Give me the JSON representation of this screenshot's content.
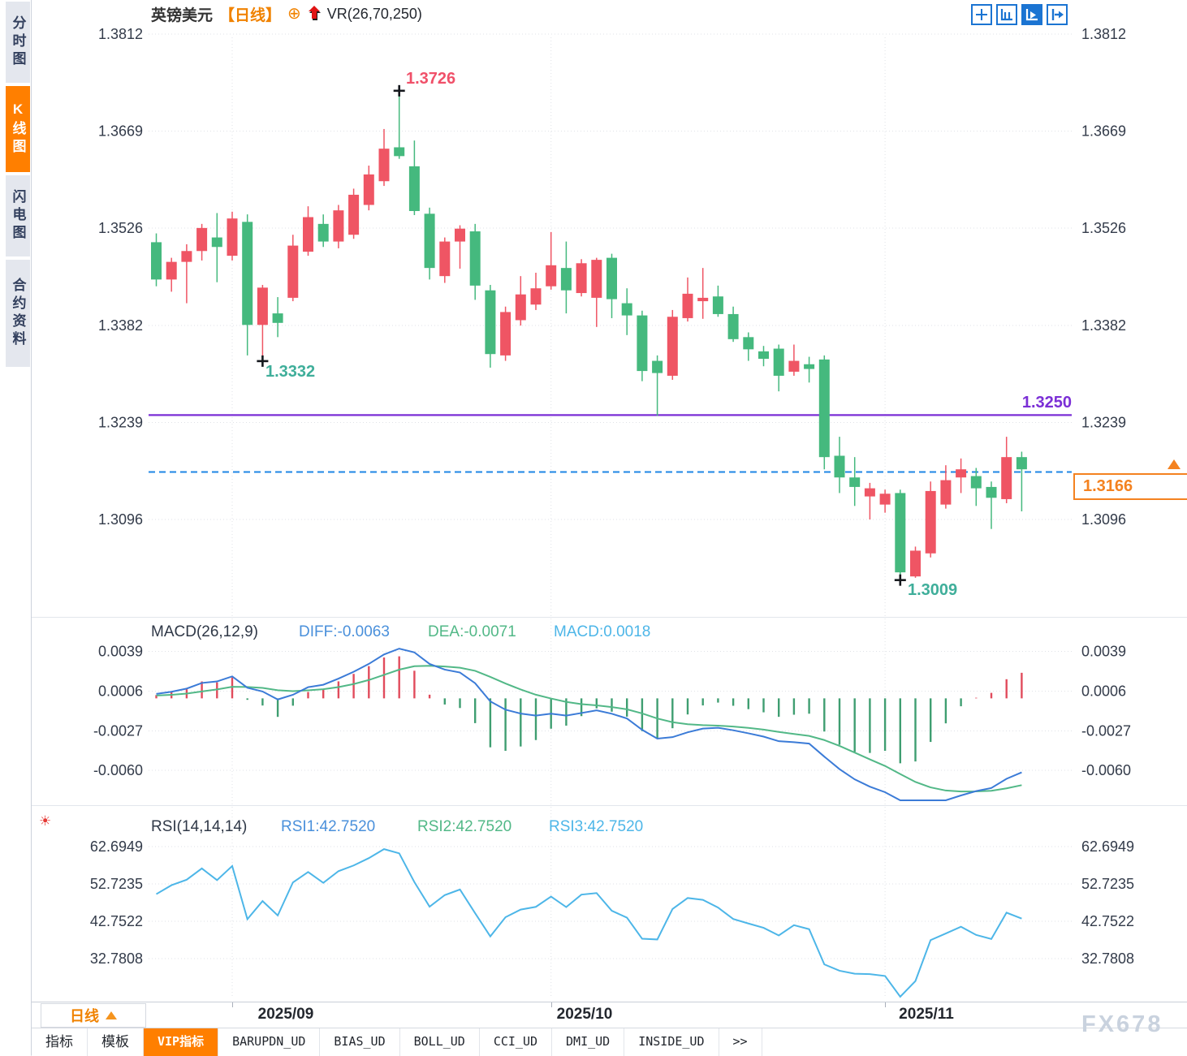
{
  "window": {
    "watermark": "FX678"
  },
  "colors": {
    "candle_up": "#EF5564",
    "candle_down": "#45B97E",
    "diff_line": "#3B7BD7",
    "dea_line": "#52B887",
    "hist_up": "#E14B5C",
    "hist_down": "#3F9E71",
    "rsi_line": "#4DB6E8",
    "legend_diff": "#4A90DB",
    "legend_dea": "#52B887",
    "legend_macd": "#4DB6E8",
    "legend_rsi1": "#4A90DB",
    "legend_rsi2": "#52B887",
    "legend_rsi3": "#4DB6E8",
    "accent_orange": "#F48220",
    "tab_active_bg": "#FF7F00",
    "support_purple": "#7B2FD6",
    "current_dashed_blue": "#1E86E5",
    "annotation_high": "#F05069",
    "annotation_low": "#3FAE9A",
    "toolbar_blue": "#1B74D2",
    "axis_text": "#333B4A",
    "watermark_gray": "#C9D2DE"
  },
  "icons": {
    "crosshair_add": "⊕",
    "rsi_bullet": "☀"
  },
  "sidebar": {
    "tabs": [
      {
        "label": "分时图",
        "active": false
      },
      {
        "label": "K线图",
        "active": true
      },
      {
        "label": "闪电图",
        "active": false
      },
      {
        "label": "合约资料",
        "active": false
      }
    ]
  },
  "header": {
    "symbol": "英镑美元",
    "period_tag": "【日线】",
    "indicator_label": "VR(26,70,250)"
  },
  "toolbar": {
    "icons": [
      "pan-crosshair-icon",
      "axis-scale-icon",
      "axis-autoplay-icon",
      "collapse-panel-icon"
    ]
  },
  "chart_data": {
    "type": "candlestick",
    "symbol": "英镑美元",
    "period": "日线",
    "overlay_indicator": "VR(26,70,250)",
    "price_panel": {
      "y_ticks": [
        "1.3812",
        "1.3669",
        "1.3526",
        "1.3382",
        "1.3239",
        "1.3096"
      ],
      "y_tick_values": [
        1.3812,
        1.3669,
        1.3526,
        1.3382,
        1.3239,
        1.3096
      ],
      "support_line": {
        "value": 1.325,
        "label": "1.3250"
      },
      "current_price": {
        "value": 1.3166,
        "label": "1.3166"
      },
      "annotations": [
        {
          "type": "swing-high",
          "label": "1.3726",
          "value": 1.3726,
          "candle_index": 16
        },
        {
          "type": "swing-low",
          "label": "1.3332",
          "value": 1.3332,
          "candle_index": 7
        },
        {
          "type": "swing-low",
          "label": "1.3009",
          "value": 1.3009,
          "candle_index": 49
        }
      ],
      "month_gridline_indices": [
        5,
        26,
        48
      ],
      "candles_ohlc": [
        [
          1.3505,
          1.3518,
          1.344,
          1.345
        ],
        [
          1.345,
          1.3482,
          1.3432,
          1.3476
        ],
        [
          1.3476,
          1.3502,
          1.3415,
          1.3492
        ],
        [
          1.3492,
          1.3532,
          1.3478,
          1.3526
        ],
        [
          1.3512,
          1.3548,
          1.3446,
          1.3498
        ],
        [
          1.3485,
          1.355,
          1.3478,
          1.354
        ],
        [
          1.3535,
          1.3546,
          1.3338,
          1.3383
        ],
        [
          1.3383,
          1.3442,
          1.3332,
          1.3438
        ],
        [
          1.34,
          1.3424,
          1.3365,
          1.3386
        ],
        [
          1.3423,
          1.3516,
          1.3418,
          1.35
        ],
        [
          1.3491,
          1.3558,
          1.3485,
          1.3542
        ],
        [
          1.3532,
          1.3546,
          1.3498,
          1.3506
        ],
        [
          1.3506,
          1.356,
          1.3496,
          1.3552
        ],
        [
          1.3516,
          1.3584,
          1.351,
          1.3575
        ],
        [
          1.356,
          1.3618,
          1.3552,
          1.3605
        ],
        [
          1.3595,
          1.3672,
          1.3588,
          1.3643
        ],
        [
          1.3645,
          1.3726,
          1.3628,
          1.3632
        ],
        [
          1.3617,
          1.3655,
          1.3545,
          1.3551
        ],
        [
          1.3547,
          1.3556,
          1.345,
          1.3467
        ],
        [
          1.3455,
          1.3512,
          1.3445,
          1.3506
        ],
        [
          1.3506,
          1.353,
          1.3466,
          1.3525
        ],
        [
          1.3521,
          1.3532,
          1.342,
          1.3441
        ],
        [
          1.3434,
          1.3442,
          1.332,
          1.334
        ],
        [
          1.3338,
          1.341,
          1.333,
          1.3402
        ],
        [
          1.339,
          1.3455,
          1.3382,
          1.3428
        ],
        [
          1.3413,
          1.346,
          1.3405,
          1.3437
        ],
        [
          1.344,
          1.352,
          1.3435,
          1.3471
        ],
        [
          1.3467,
          1.3506,
          1.34,
          1.3434
        ],
        [
          1.343,
          1.348,
          1.3425,
          1.3474
        ],
        [
          1.3423,
          1.3482,
          1.338,
          1.3479
        ],
        [
          1.3482,
          1.3488,
          1.3393,
          1.3421
        ],
        [
          1.3415,
          1.3437,
          1.3368,
          1.3397
        ],
        [
          1.3397,
          1.3404,
          1.33,
          1.3315
        ],
        [
          1.333,
          1.3338,
          1.3249,
          1.3312
        ],
        [
          1.3308,
          1.3405,
          1.3302,
          1.3395
        ],
        [
          1.3393,
          1.3453,
          1.3388,
          1.3429
        ],
        [
          1.3418,
          1.3467,
          1.3392,
          1.3423
        ],
        [
          1.3425,
          1.3441,
          1.3395,
          1.3399
        ],
        [
          1.3399,
          1.341,
          1.3358,
          1.3362
        ],
        [
          1.3365,
          1.3372,
          1.333,
          1.3347
        ],
        [
          1.3344,
          1.3352,
          1.3322,
          1.3333
        ],
        [
          1.3348,
          1.3354,
          1.3285,
          1.3308
        ],
        [
          1.3314,
          1.3354,
          1.3308,
          1.333
        ],
        [
          1.3325,
          1.3336,
          1.3298,
          1.3318
        ],
        [
          1.3332,
          1.3338,
          1.317,
          1.3188
        ],
        [
          1.319,
          1.3218,
          1.3135,
          1.3158
        ],
        [
          1.3158,
          1.3188,
          1.3116,
          1.3144
        ],
        [
          1.313,
          1.315,
          1.3096,
          1.3142
        ],
        [
          1.3118,
          1.314,
          1.3106,
          1.3134
        ],
        [
          1.3135,
          1.314,
          1.3009,
          1.3018
        ],
        [
          1.3012,
          1.3056,
          1.301,
          1.305
        ],
        [
          1.3046,
          1.3152,
          1.304,
          1.3138
        ],
        [
          1.3118,
          1.3176,
          1.3112,
          1.3154
        ],
        [
          1.3158,
          1.3186,
          1.3135,
          1.317
        ],
        [
          1.316,
          1.3172,
          1.3116,
          1.3142
        ],
        [
          1.3144,
          1.3152,
          1.3082,
          1.3128
        ],
        [
          1.3126,
          1.3218,
          1.312,
          1.3188
        ],
        [
          1.3188,
          1.3196,
          1.3108,
          1.317
        ]
      ]
    },
    "macd_panel": {
      "title": "MACD(26,12,9)",
      "params": [
        26,
        12,
        9
      ],
      "legend": [
        {
          "text": "DIFF:-0.0063",
          "series": "diff"
        },
        {
          "text": "DEA:-0.0071",
          "series": "dea"
        },
        {
          "text": "MACD:0.0018",
          "series": "macd_hist"
        }
      ],
      "y_ticks": [
        "0.0039",
        "0.0006",
        "-0.0027",
        "-0.0060"
      ],
      "y_tick_values": [
        0.0039,
        0.0006,
        -0.0027,
        -0.006
      ]
    },
    "rsi_panel": {
      "title": "RSI(14,14,14)",
      "params": [
        14,
        14,
        14
      ],
      "legend": [
        {
          "text": "RSI1:42.7520",
          "series": "rsi1"
        },
        {
          "text": "RSI2:42.7520",
          "series": "rsi2"
        },
        {
          "text": "RSI3:42.7520",
          "series": "rsi3"
        }
      ],
      "y_ticks": [
        "62.6949",
        "52.7235",
        "42.7522",
        "32.7808"
      ],
      "y_tick_values": [
        62.6949,
        52.7235,
        42.7522,
        32.7808
      ]
    },
    "x_axis": {
      "labels": [
        "2025/09",
        "2025/10",
        "2025/11"
      ]
    }
  },
  "footer": {
    "period_label": "日线",
    "months": [
      "2025/09",
      "2025/10",
      "2025/11"
    ],
    "tabs": [
      {
        "label": "指标",
        "active": false
      },
      {
        "label": "模板",
        "active": false
      },
      {
        "label": "VIP指标",
        "active": true
      },
      {
        "label": "BARUPDN_UD",
        "active": false
      },
      {
        "label": "BIAS_UD",
        "active": false
      },
      {
        "label": "BOLL_UD",
        "active": false
      },
      {
        "label": "CCI_UD",
        "active": false
      },
      {
        "label": "DMI_UD",
        "active": false
      },
      {
        "label": "INSIDE_UD",
        "active": false
      },
      {
        "label": ">>",
        "active": false
      }
    ]
  }
}
